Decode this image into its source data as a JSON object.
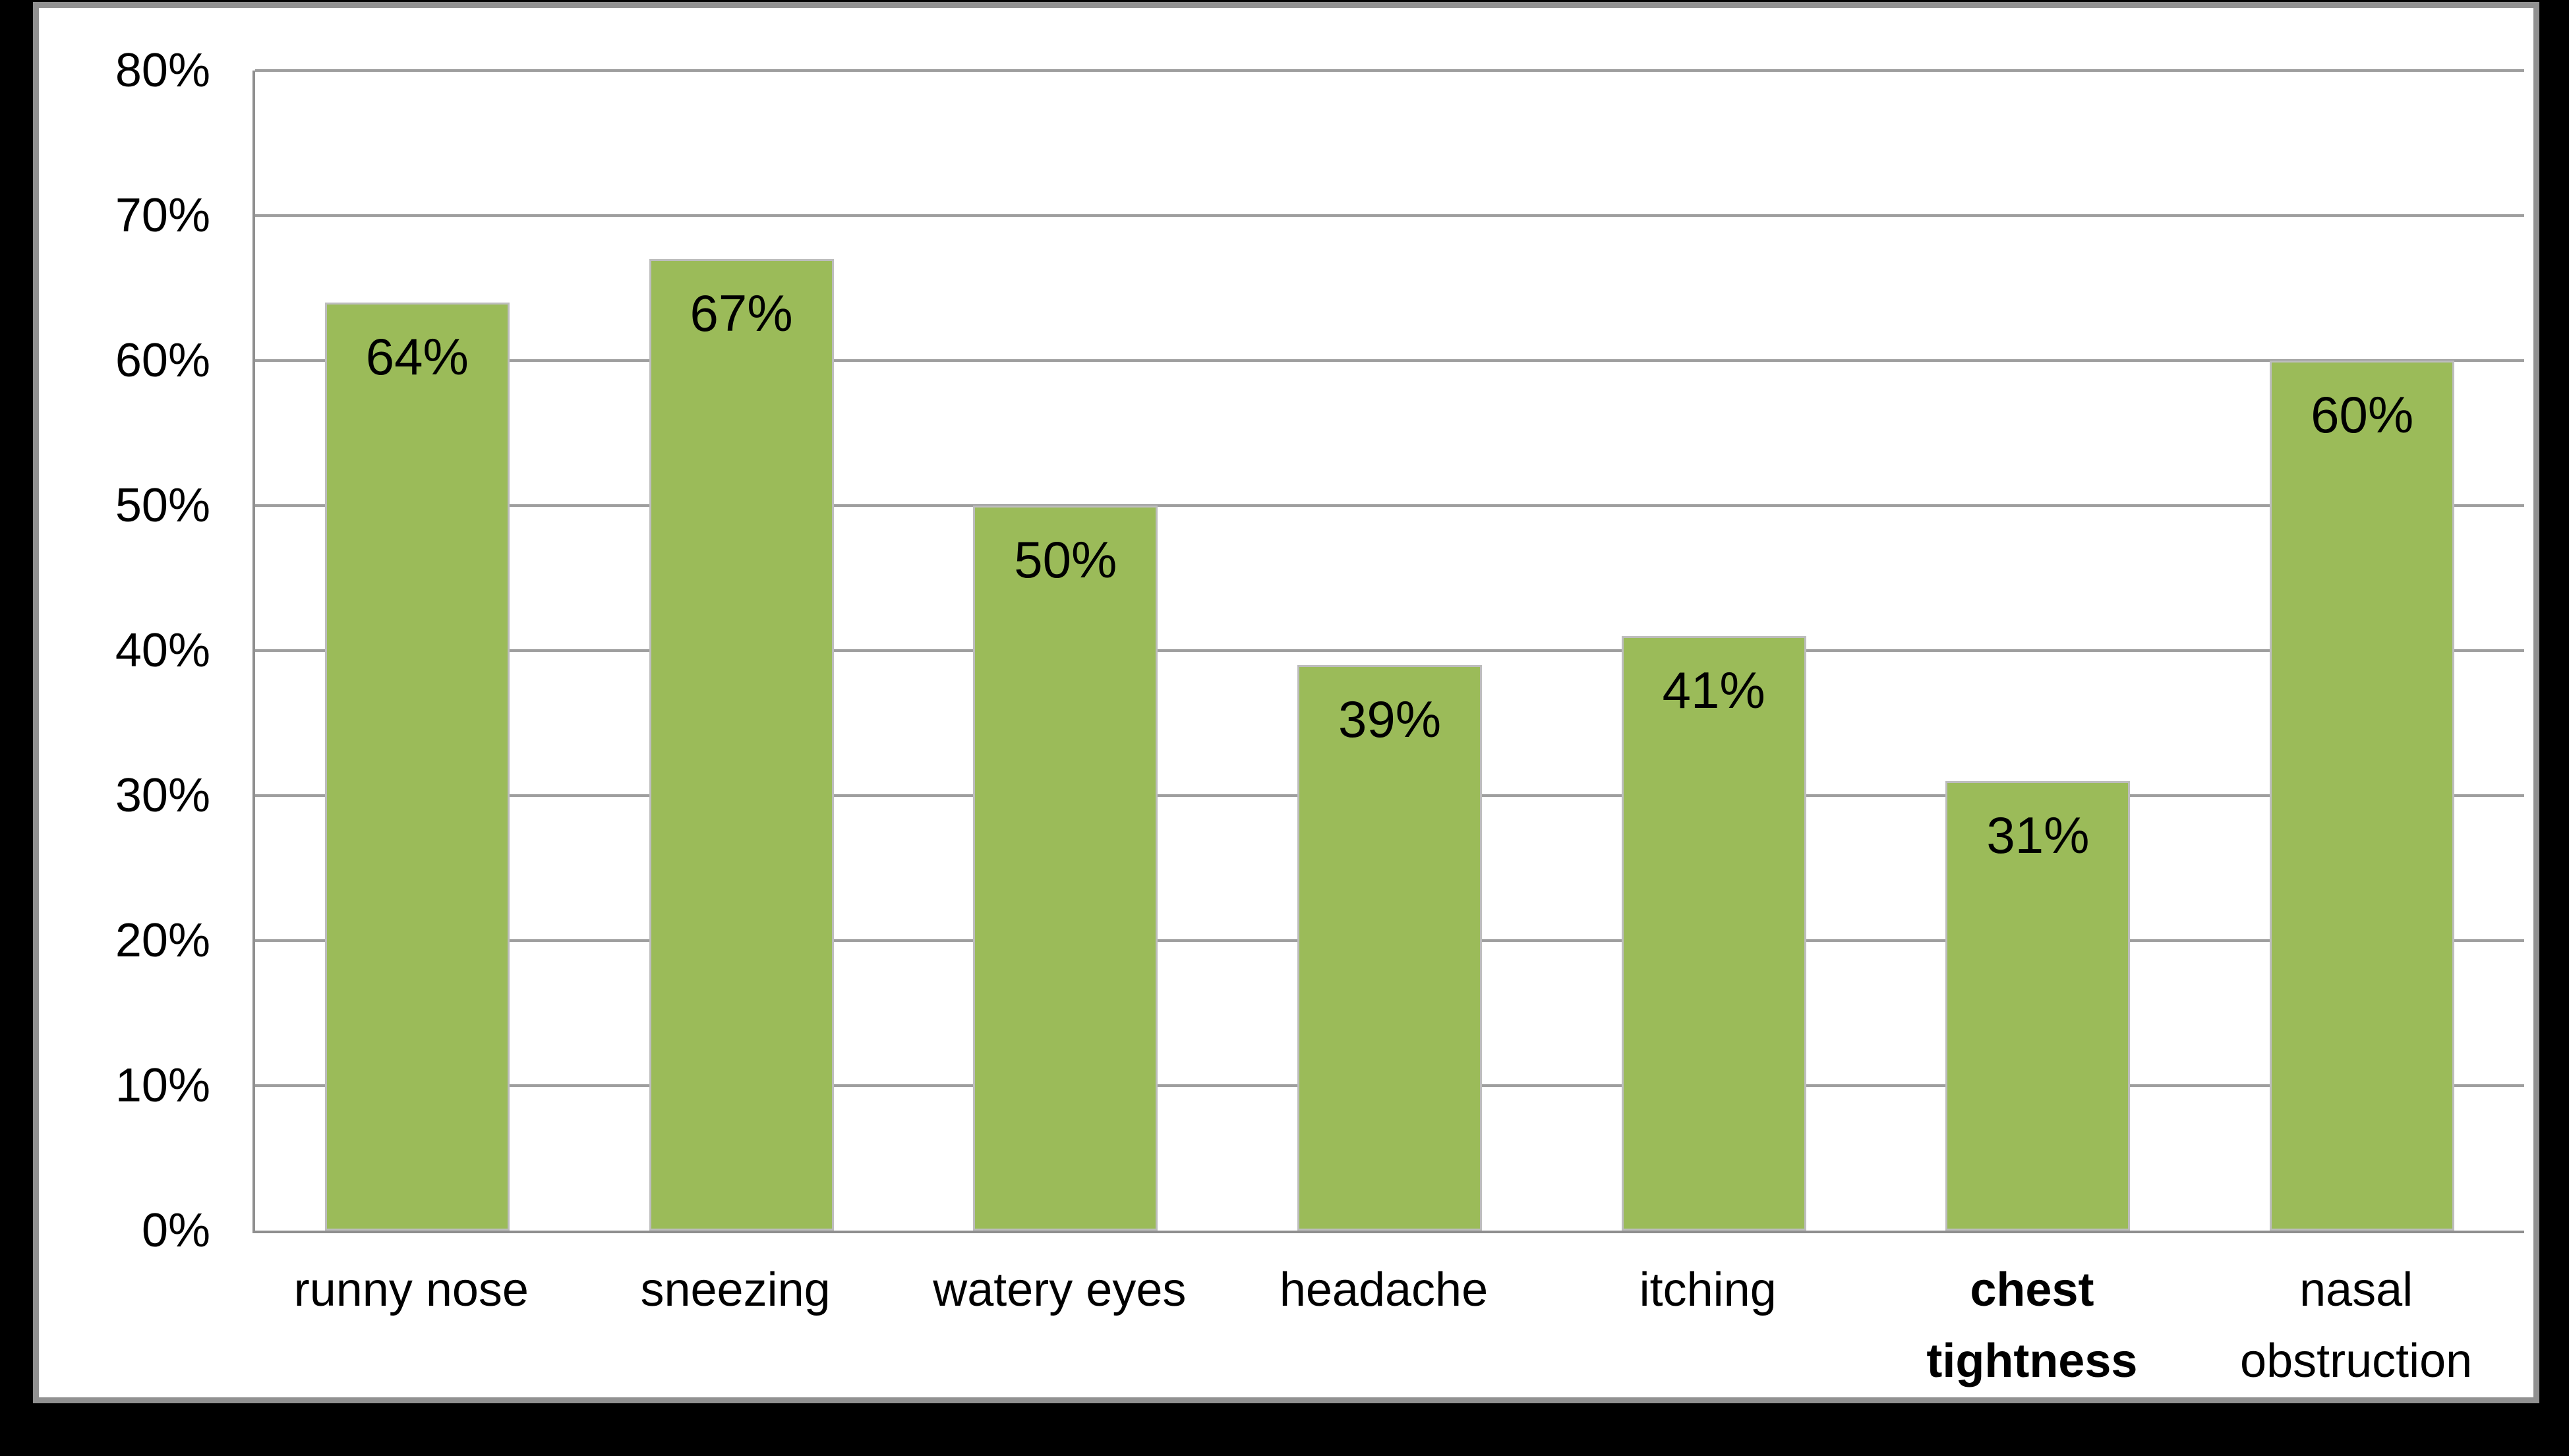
{
  "chart_data": {
    "type": "bar",
    "title": "",
    "categories": [
      "runny nose",
      "sneezing",
      "watery eyes",
      "headache",
      "itching",
      "chest tightness",
      "nasal obstruction"
    ],
    "values": [
      64,
      67,
      50,
      39,
      41,
      31,
      60
    ],
    "data_labels": [
      "64%",
      "67%",
      "50%",
      "39%",
      "41%",
      "31%",
      "60%"
    ],
    "emphasized_category": "chest tightness",
    "y_axis": {
      "min": 0,
      "max": 80,
      "step": 10,
      "tick_labels": [
        "0%",
        "10%",
        "20%",
        "30%",
        "40%",
        "50%",
        "60%",
        "70%",
        "80%"
      ]
    },
    "xlabel": "",
    "ylabel": "",
    "legend": "none",
    "grid": "horizontal",
    "data_label_position": "inside-end",
    "colors": {
      "bar_fill": "#9bbb59",
      "bar_border": "#bdbdbd",
      "gridline": "#9e9e9e",
      "axis_line": "#8f8f8f",
      "text": "#000000",
      "panel_background": "#ffffff",
      "panel_border": "#919191",
      "page_background": "#000000"
    }
  }
}
